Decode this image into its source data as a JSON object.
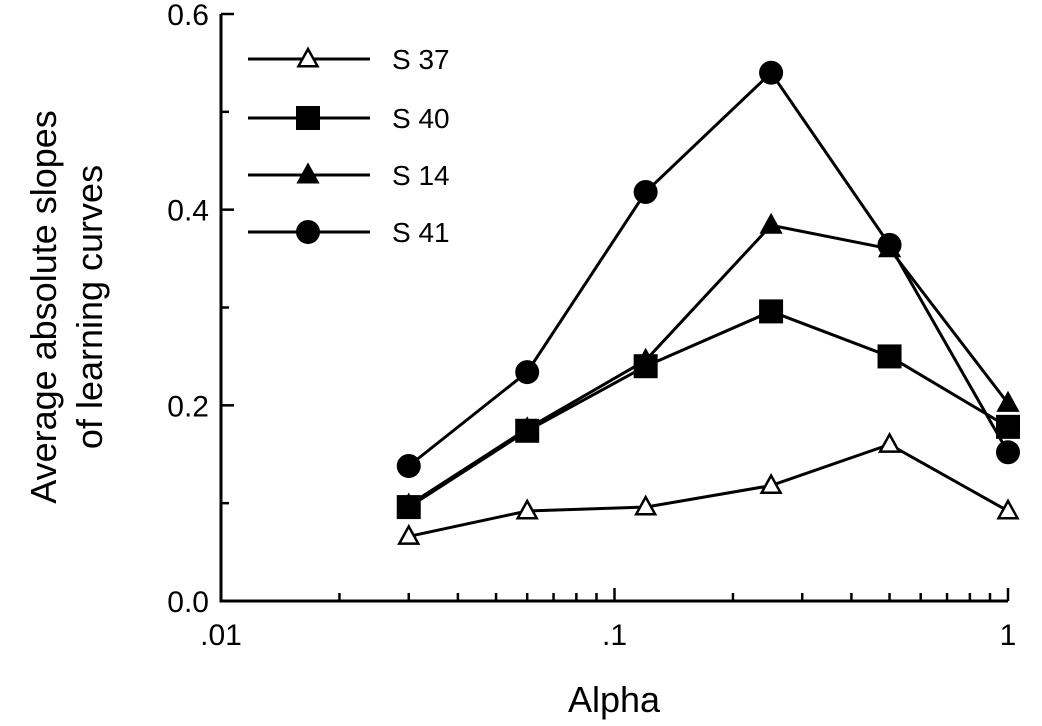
{
  "chart_data": {
    "type": "line",
    "title": "",
    "xlabel": "Alpha",
    "ylabel_lines": [
      "Average absolute slopes",
      "of learning curves"
    ],
    "xscale": "log",
    "xlim": [
      0.01,
      1
    ],
    "ylim": [
      0,
      0.6
    ],
    "x_ticks": [
      {
        "value": 0.01,
        "label": ".01"
      },
      {
        "value": 0.1,
        "label": ".1"
      },
      {
        "value": 1,
        "label": "1"
      }
    ],
    "y_ticks": [
      {
        "value": 0,
        "label": "0.0"
      },
      {
        "value": 0.2,
        "label": "0.2"
      },
      {
        "value": 0.4,
        "label": "0.4"
      },
      {
        "value": 0.6,
        "label": "0.6"
      }
    ],
    "grid": false,
    "legend_position": "top-left",
    "x": [
      0.03,
      0.06,
      0.12,
      0.25,
      0.5,
      1
    ],
    "series": [
      {
        "name": "S 37",
        "marker": "triangle-open",
        "values": [
          0.066,
          0.092,
          0.096,
          0.118,
          0.16,
          0.092
        ]
      },
      {
        "name": "S 40",
        "marker": "square-filled",
        "values": [
          0.096,
          0.174,
          0.24,
          0.296,
          0.25,
          0.178
        ]
      },
      {
        "name": "S 14",
        "marker": "triangle-filled",
        "values": [
          0.098,
          0.176,
          0.246,
          0.384,
          0.36,
          0.202
        ]
      },
      {
        "name": "S 41",
        "marker": "circle-filled",
        "values": [
          0.138,
          0.234,
          0.418,
          0.54,
          0.364,
          0.152
        ]
      }
    ]
  }
}
